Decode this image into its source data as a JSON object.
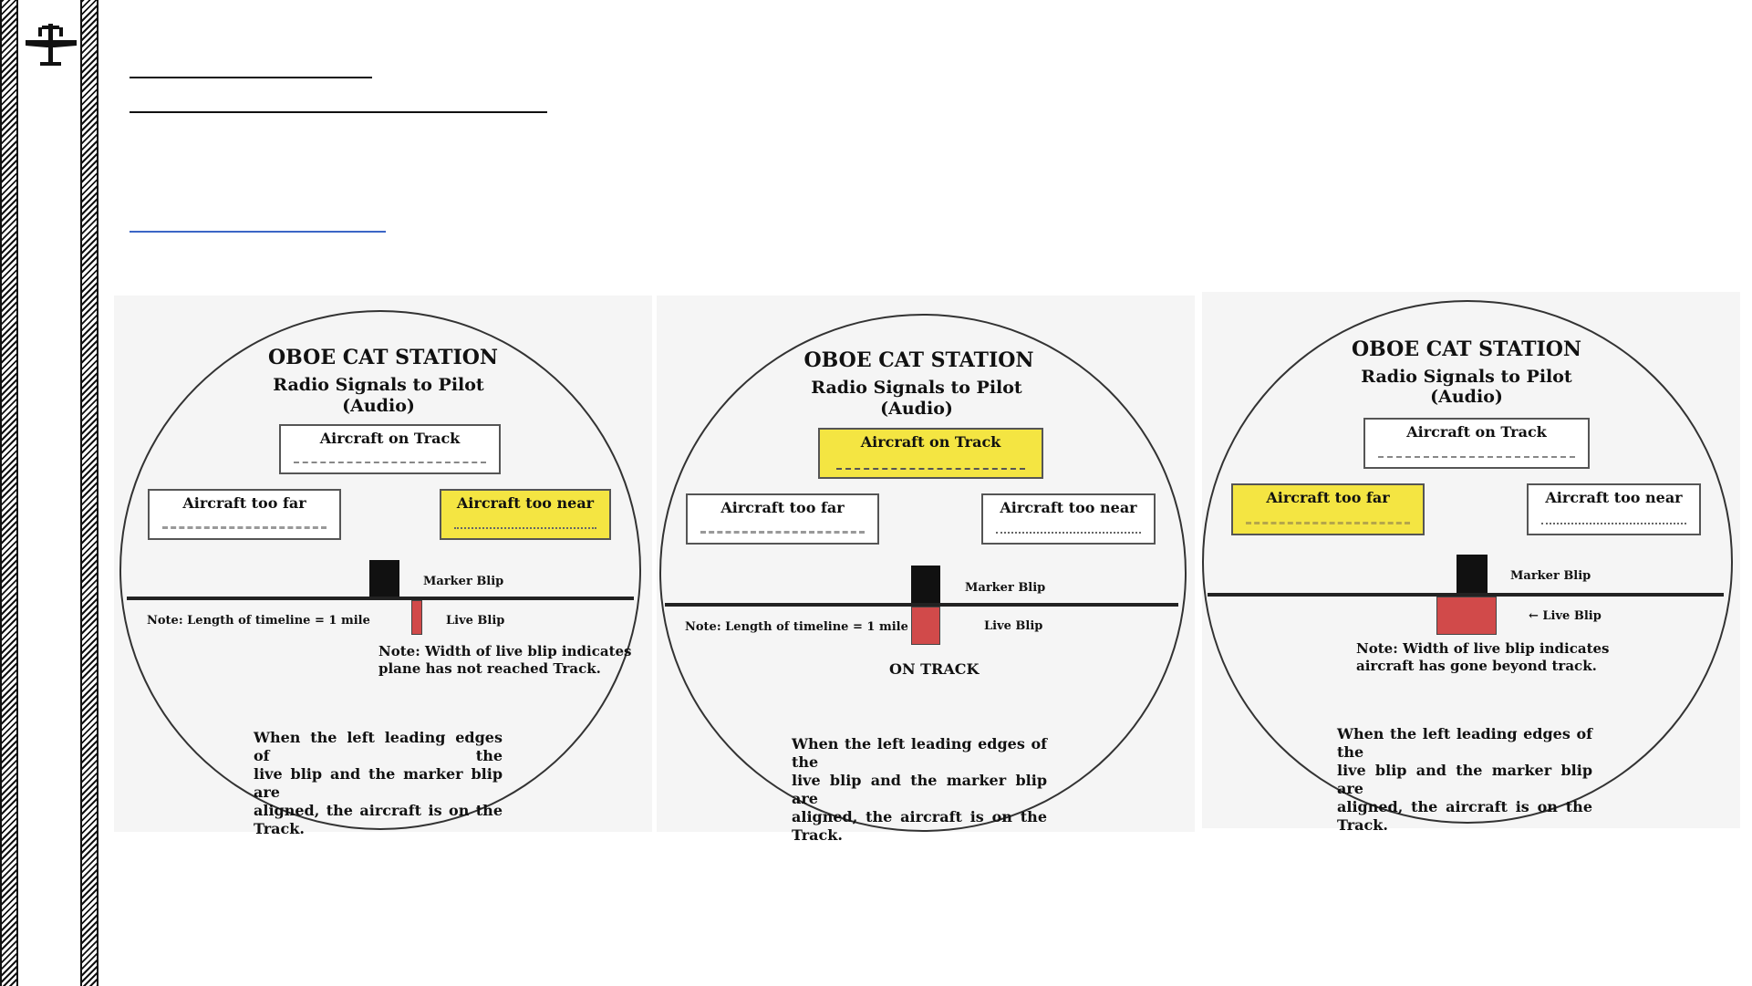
{
  "panels": [
    {
      "station": "OBOE CAT STATION",
      "subtitle1": "Radio Signals to Pilot",
      "subtitle2": "(Audio)",
      "box_track": "Aircraft on Track",
      "box_far": "Aircraft too far",
      "box_near": "Aircraft too near",
      "highlighted": "near",
      "marker_label": "Marker Blip",
      "live_label": "Live Blip",
      "timeline_note": "Note: Length of timeline = 1 mile",
      "width_note_1": "Note: Width of live blip indicates",
      "width_note_2": "plane has not reached Track.",
      "para_1": "When the left leading edges of the",
      "para_2": "live blip and the marker blip are",
      "para_3": "aligned, the aircraft is on the Track."
    },
    {
      "station": "OBOE CAT STATION",
      "subtitle1": "Radio Signals to Pilot",
      "subtitle2": "(Audio)",
      "box_track": "Aircraft on Track",
      "box_far": "Aircraft too far",
      "box_near": "Aircraft too near",
      "highlighted": "track",
      "marker_label": "Marker Blip",
      "live_label": "Live Blip",
      "timeline_note": "Note: Length of timeline = 1 mile",
      "on_track": "ON TRACK",
      "para_1": "When the left leading edges of the",
      "para_2": "live blip and the marker blip are",
      "para_3": "aligned, the aircraft is on the Track."
    },
    {
      "station": "OBOE CAT STATION",
      "subtitle1": "Radio Signals to Pilot",
      "subtitle2": "(Audio)",
      "box_track": "Aircraft on Track",
      "box_far": "Aircraft too far",
      "box_near": "Aircraft too near",
      "highlighted": "far",
      "marker_label": "Marker Blip",
      "live_label": "← Live Blip",
      "width_note_1": "Note: Width of live blip indicates",
      "width_note_2": "aircraft has gone beyond track.",
      "para_1": "When the left leading edges of the",
      "para_2": "live blip and the marker blip are",
      "para_3": "aligned, the aircraft is on the Track."
    }
  ],
  "colors": {
    "highlight": "#f4e542",
    "live_blip": "#d14a4a",
    "link": "#3b66c6"
  },
  "icons": {
    "logo": "airplane-icon"
  }
}
